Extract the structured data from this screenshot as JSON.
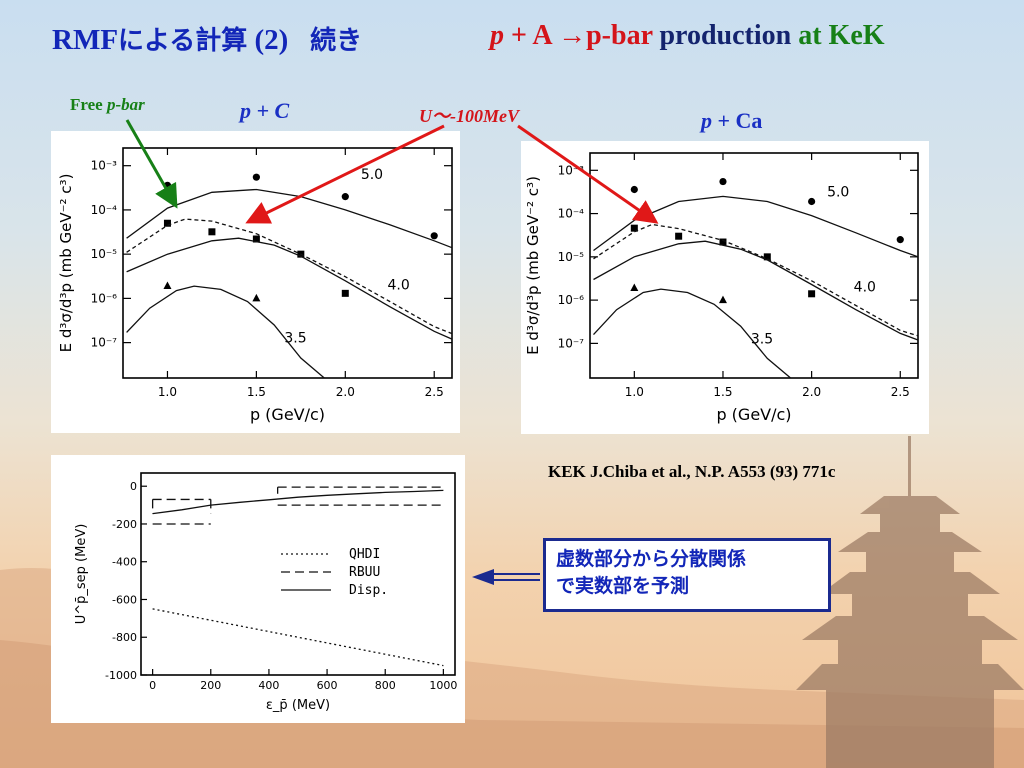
{
  "slide": {
    "title_left_prefix": "RMF",
    "title_left_jp": "による計算",
    "title_left_num": "(2)",
    "title_left_cont": "続き",
    "title_right_p": "p",
    "title_right_reaction": " + A →",
    "title_right_pbar": "p-bar",
    "title_right_production": " production ",
    "title_right_at": "at KeK",
    "label_free": "Free ",
    "label_free_pbar": "p-bar",
    "label_pc_p": "p",
    "label_pc_rest": " + C",
    "label_u": "U～-100MeV",
    "label_pca_p": "p",
    "label_pca_rest": " + Ca",
    "reference": "KEK    J.Chiba et al.,   N.P. A553 (93) 771c",
    "note_line1": "虚数部分から分散関係",
    "note_line2": "で実数部を予測",
    "colors": {
      "title_blue": "#1226b8",
      "red": "#d4141a",
      "green": "#178017",
      "navy": "#14246e"
    }
  },
  "chart_data": [
    {
      "type": "line",
      "panel": "p + C",
      "xlabel": "p  (GeV/c)",
      "ylabel": "E  d³σ/d³p  (mb GeV⁻² c³)",
      "xlim": [
        0.75,
        2.6
      ],
      "ylim_log10": [
        -7.8,
        -2.6
      ],
      "x_ticks": [
        "1.0",
        "1.5",
        "2.0",
        "2.5"
      ],
      "y_ticks": [
        "10⁻³",
        "10⁻⁴",
        "10⁻⁵",
        "10⁻⁶",
        "10⁻⁷"
      ],
      "curve_labels": [
        {
          "text": "5.0",
          "x": 2.15,
          "y": 0.0005
        },
        {
          "text": "4.0",
          "x": 2.3,
          "y": 1.6e-06
        },
        {
          "text": "3.5",
          "x": 1.72,
          "y": 1e-07
        }
      ],
      "series": [
        {
          "marker": "circle",
          "points": [
            [
              1.0,
              0.00036
            ],
            [
              1.5,
              0.00055
            ],
            [
              2.0,
              0.0002
            ],
            [
              2.5,
              2.6e-05
            ]
          ]
        },
        {
          "marker": "square",
          "points": [
            [
              1.0,
              5e-05
            ],
            [
              1.25,
              3.2e-05
            ],
            [
              1.5,
              2.2e-05
            ],
            [
              1.75,
              1e-05
            ],
            [
              2.0,
              1.3e-06
            ]
          ]
        },
        {
          "marker": "triangle",
          "points": [
            [
              1.0,
              1.9e-06
            ],
            [
              1.5,
              1e-06
            ]
          ]
        },
        {
          "style": "solid",
          "points": [
            [
              0.77,
              2.3e-05
            ],
            [
              1.0,
              0.00011
            ],
            [
              1.25,
              0.00025
            ],
            [
              1.5,
              0.00029
            ],
            [
              1.75,
              0.0002
            ],
            [
              2.0,
              0.0001
            ],
            [
              2.25,
              4.6e-05
            ],
            [
              2.5,
              2e-05
            ],
            [
              2.6,
              1.4e-05
            ]
          ]
        },
        {
          "style": "dashed",
          "points": [
            [
              0.77,
              1.1e-05
            ],
            [
              1.0,
              4.5e-05
            ],
            [
              1.1,
              6.2e-05
            ],
            [
              1.25,
              5.6e-05
            ],
            [
              1.5,
              2.9e-05
            ],
            [
              1.75,
              1e-05
            ],
            [
              2.0,
              3.1e-06
            ],
            [
              2.25,
              8.5e-07
            ],
            [
              2.5,
              2.3e-07
            ],
            [
              2.6,
              1.6e-07
            ]
          ]
        },
        {
          "style": "solid",
          "points": [
            [
              0.77,
              4e-06
            ],
            [
              1.0,
              1e-05
            ],
            [
              1.25,
              2e-05
            ],
            [
              1.4,
              2.3e-05
            ],
            [
              1.6,
              1.6e-05
            ],
            [
              1.75,
              9e-06
            ],
            [
              2.0,
              2.5e-06
            ],
            [
              2.25,
              6.5e-07
            ],
            [
              2.5,
              1.8e-07
            ],
            [
              2.6,
              1.2e-07
            ]
          ]
        },
        {
          "style": "solid",
          "points": [
            [
              0.77,
              1.7e-07
            ],
            [
              0.9,
              6e-07
            ],
            [
              1.05,
              1.5e-06
            ],
            [
              1.15,
              1.9e-06
            ],
            [
              1.3,
              1.6e-06
            ],
            [
              1.45,
              8.5e-07
            ],
            [
              1.6,
              2.5e-07
            ],
            [
              1.75,
              4.5e-08
            ],
            [
              1.88,
              1.6e-08
            ]
          ]
        }
      ]
    },
    {
      "type": "line",
      "panel": "p + Ca",
      "xlabel": "p  (GeV/c)",
      "ylabel": "E  d³σ/d³p  (mb GeV⁻² c³)",
      "xlim": [
        0.75,
        2.6
      ],
      "ylim_log10": [
        -7.8,
        -2.6
      ],
      "x_ticks": [
        "1.0",
        "1.5",
        "2.0",
        "2.5"
      ],
      "y_ticks": [
        "10⁻³",
        "10⁻⁴",
        "10⁻⁵",
        "10⁻⁶",
        "10⁻⁷"
      ],
      "curve_labels": [
        {
          "text": "5.0",
          "x": 2.15,
          "y": 0.00025
        },
        {
          "text": "4.0",
          "x": 2.3,
          "y": 1.6e-06
        },
        {
          "text": "3.5",
          "x": 1.72,
          "y": 1e-07
        }
      ],
      "series": [
        {
          "marker": "circle",
          "points": [
            [
              1.0,
              0.00036
            ],
            [
              1.5,
              0.00055
            ],
            [
              2.0,
              0.00019
            ],
            [
              2.5,
              2.5e-05
            ]
          ]
        },
        {
          "marker": "square",
          "points": [
            [
              1.0,
              4.6e-05
            ],
            [
              1.25,
              3e-05
            ],
            [
              1.5,
              2.2e-05
            ],
            [
              1.75,
              1e-05
            ],
            [
              2.0,
              1.4e-06
            ]
          ]
        },
        {
          "marker": "triangle",
          "points": [
            [
              1.0,
              1.9e-06
            ],
            [
              1.5,
              1e-06
            ]
          ]
        },
        {
          "style": "solid",
          "points": [
            [
              0.77,
              1.4e-05
            ],
            [
              1.0,
              7e-05
            ],
            [
              1.25,
              0.00019
            ],
            [
              1.5,
              0.00025
            ],
            [
              1.75,
              0.00019
            ],
            [
              2.0,
              9e-05
            ],
            [
              2.25,
              3.6e-05
            ],
            [
              2.5,
              1.4e-05
            ],
            [
              2.6,
              1e-05
            ]
          ]
        },
        {
          "style": "dashed",
          "points": [
            [
              0.77,
              9e-06
            ],
            [
              1.0,
              3.8e-05
            ],
            [
              1.1,
              5.6e-05
            ],
            [
              1.25,
              4.5e-05
            ],
            [
              1.5,
              2.4e-05
            ],
            [
              1.75,
              9e-06
            ],
            [
              2.0,
              2.8e-06
            ],
            [
              2.25,
              7.5e-07
            ],
            [
              2.5,
              2e-07
            ],
            [
              2.6,
              1.5e-07
            ]
          ]
        },
        {
          "style": "solid",
          "points": [
            [
              0.77,
              3e-06
            ],
            [
              1.0,
              1e-05
            ],
            [
              1.25,
              2e-05
            ],
            [
              1.4,
              2.3e-05
            ],
            [
              1.6,
              1.5e-05
            ],
            [
              1.75,
              8.5e-06
            ],
            [
              2.0,
              2.3e-06
            ],
            [
              2.25,
              6e-07
            ],
            [
              2.5,
              1.7e-07
            ],
            [
              2.6,
              1.2e-07
            ]
          ]
        },
        {
          "style": "solid",
          "points": [
            [
              0.77,
              1.6e-07
            ],
            [
              0.9,
              6e-07
            ],
            [
              1.05,
              1.5e-06
            ],
            [
              1.15,
              1.8e-06
            ],
            [
              1.3,
              1.5e-06
            ],
            [
              1.45,
              8e-07
            ],
            [
              1.6,
              2.5e-07
            ],
            [
              1.75,
              4.5e-08
            ],
            [
              1.88,
              1.6e-08
            ]
          ]
        }
      ]
    },
    {
      "type": "line",
      "panel": "potential",
      "xlabel": "ε_p̄  (MeV)",
      "ylabel": "U^p̄_sep  (MeV)",
      "xlim": [
        -40,
        1040
      ],
      "ylim": [
        -1000,
        70
      ],
      "x_ticks": [
        "0",
        "200",
        "400",
        "600",
        "800",
        "1000"
      ],
      "y_ticks": [
        "0",
        "-200",
        "-400",
        "-600",
        "-800",
        "-1000"
      ],
      "legend": [
        {
          "name": "QHDI",
          "style": "dotted"
        },
        {
          "name": "RBUU",
          "style": "dashed"
        },
        {
          "name": "Disp.",
          "style": "solid"
        }
      ],
      "legend_position": "middle-right",
      "series": [
        {
          "name": "QHDI",
          "style": "dotted",
          "points": [
            [
              0,
              -650
            ],
            [
              1000,
              -950
            ]
          ]
        },
        {
          "name": "RBUU",
          "style": "dashed",
          "segments": [
            [
              [
                0,
                -70
              ],
              [
                200,
                -70
              ]
            ],
            [
              [
                0,
                -200
              ],
              [
                200,
                -200
              ]
            ],
            [
              [
                0,
                -70
              ],
              [
                0,
                -145
              ]
            ],
            [
              [
                200,
                -70
              ],
              [
                200,
                -145
              ]
            ],
            [
              [
                430,
                -5
              ],
              [
                1000,
                -5
              ]
            ],
            [
              [
                430,
                -100
              ],
              [
                1000,
                -100
              ]
            ],
            [
              [
                430,
                -5
              ],
              [
                430,
                -40
              ]
            ]
          ]
        },
        {
          "name": "Disp.",
          "style": "solid",
          "points": [
            [
              0,
              -145
            ],
            [
              100,
              -125
            ],
            [
              200,
              -100
            ],
            [
              300,
              -85
            ],
            [
              400,
              -72
            ],
            [
              500,
              -58
            ],
            [
              600,
              -48
            ],
            [
              700,
              -40
            ],
            [
              800,
              -33
            ],
            [
              900,
              -28
            ],
            [
              1000,
              -22
            ]
          ]
        }
      ]
    }
  ]
}
